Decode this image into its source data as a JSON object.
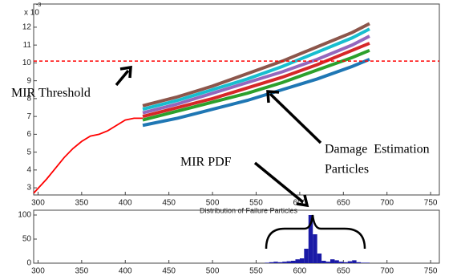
{
  "chart_data": [
    {
      "type": "line",
      "y_multiplier": "x 10",
      "y_multiplier_exp": "-3",
      "xlim": [
        295,
        760
      ],
      "ylim": [
        2.6,
        13.3
      ],
      "xticks": [
        300,
        350,
        400,
        450,
        500,
        550,
        600,
        650,
        700,
        750
      ],
      "yticks": [
        3,
        4,
        5,
        6,
        7,
        8,
        9,
        10,
        11,
        12
      ],
      "threshold": 10.1,
      "threshold_color": "#ff0000",
      "series": [
        {
          "color": "#ff0000",
          "x": [
            295,
            310,
            320,
            330,
            340,
            350,
            360,
            370,
            380,
            390,
            400,
            410,
            420
          ],
          "values": [
            2.7,
            3.5,
            4.1,
            4.7,
            5.2,
            5.6,
            5.9,
            6.0,
            6.2,
            6.5,
            6.8,
            6.9,
            6.9
          ]
        },
        {
          "color": "#1f77b4",
          "x": [
            420,
            460,
            500,
            540,
            580,
            620,
            660,
            680
          ],
          "values": [
            6.5,
            6.9,
            7.4,
            7.9,
            8.5,
            9.1,
            9.8,
            10.2
          ]
        },
        {
          "color": "#2ca02c",
          "x": [
            420,
            460,
            500,
            540,
            580,
            620,
            660,
            680
          ],
          "values": [
            6.8,
            7.3,
            7.8,
            8.3,
            8.9,
            9.6,
            10.3,
            10.7
          ]
        },
        {
          "color": "#d62728",
          "x": [
            420,
            460,
            500,
            540,
            580,
            620,
            660,
            680
          ],
          "values": [
            7.0,
            7.5,
            8.0,
            8.6,
            9.2,
            9.9,
            10.7,
            11.1
          ]
        },
        {
          "color": "#9467bd",
          "x": [
            420,
            460,
            500,
            540,
            580,
            620,
            660,
            680
          ],
          "values": [
            7.2,
            7.7,
            8.3,
            8.9,
            9.5,
            10.2,
            11.0,
            11.5
          ]
        },
        {
          "color": "#17becf",
          "x": [
            420,
            460,
            500,
            540,
            580,
            620,
            660,
            680
          ],
          "values": [
            7.4,
            7.9,
            8.5,
            9.1,
            9.8,
            10.6,
            11.4,
            11.9
          ]
        },
        {
          "color": "#8c564b",
          "x": [
            420,
            460,
            500,
            540,
            580,
            620,
            660,
            680
          ],
          "values": [
            7.6,
            8.1,
            8.7,
            9.4,
            10.1,
            10.9,
            11.7,
            12.2
          ]
        }
      ],
      "annotations": [
        "MIR Threshold",
        "Damage  Estimation",
        "Particles",
        "MIR PDF"
      ]
    },
    {
      "type": "histogram",
      "title": "Distribution of Failure Particles",
      "color": "#1a1aa6",
      "xlim": [
        295,
        760
      ],
      "ylim": [
        0,
        110
      ],
      "xticks": [
        300,
        350,
        400,
        450,
        500,
        550,
        600,
        650,
        700,
        750
      ],
      "yticks": [
        0,
        50,
        100
      ],
      "bins": [
        560,
        565,
        570,
        575,
        580,
        585,
        590,
        595,
        600,
        605,
        610,
        615,
        620,
        625,
        630,
        635,
        640,
        645,
        650,
        655,
        660,
        665,
        670,
        675,
        680
      ],
      "values": [
        1,
        2,
        3,
        2,
        3,
        4,
        5,
        8,
        10,
        30,
        100,
        60,
        20,
        5,
        3,
        8,
        6,
        3,
        2,
        4,
        6,
        2,
        1,
        1
      ]
    }
  ]
}
